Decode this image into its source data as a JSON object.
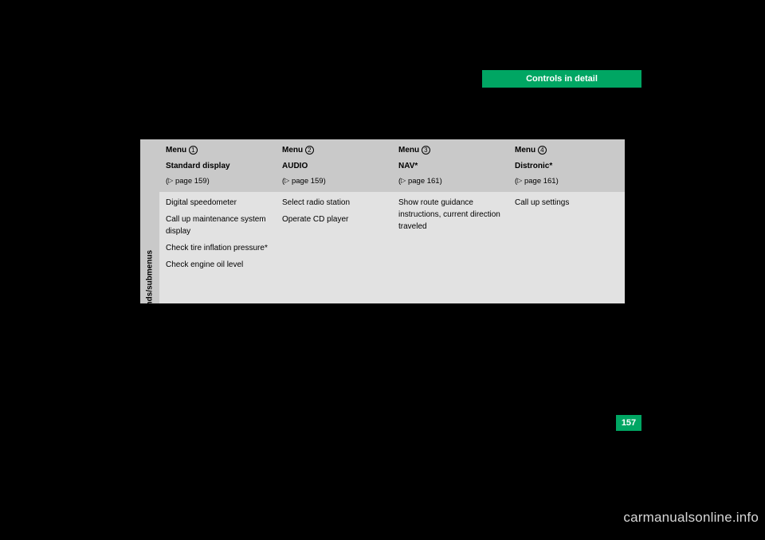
{
  "header": {
    "title": "Controls in detail",
    "bg_color": "#00a663",
    "text_color": "#ffffff"
  },
  "page_number": "157",
  "watermark": "carmanualsonline.info",
  "side_label": "Commands/submenus",
  "menus": [
    {
      "num": "1",
      "label": "Menu",
      "title": "Standard display",
      "ref": "page 159",
      "commands": [
        "Digital speedometer",
        "Call up maintenance system display",
        "Check tire inflation pressure*",
        "Check engine oil level"
      ]
    },
    {
      "num": "2",
      "label": "Menu",
      "title": "AUDIO",
      "ref": "page 159",
      "commands": [
        "Select radio station",
        "Operate CD player"
      ]
    },
    {
      "num": "3",
      "label": "Menu",
      "title": "NAV*",
      "ref": "page 161",
      "commands": [
        "Show route guidance instructions, current direction traveled"
      ]
    },
    {
      "num": "4",
      "label": "Menu",
      "title": "Distronic*",
      "ref": "page 161",
      "commands": [
        "Call up settings"
      ]
    }
  ],
  "colors": {
    "page_bg": "#000000",
    "th_bg": "#c9c9c9",
    "td_bg": "#e2e2e2",
    "accent": "#00a663"
  }
}
